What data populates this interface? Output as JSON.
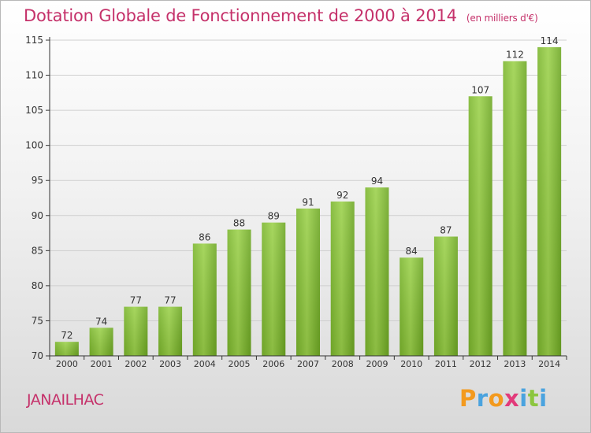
{
  "chart_data": {
    "type": "bar",
    "title": "Dotation Globale de Fonctionnement de 2000 à 2014",
    "subtitle": "(en milliers d'€)",
    "categories": [
      "2000",
      "2001",
      "2002",
      "2003",
      "2004",
      "2005",
      "2006",
      "2007",
      "2008",
      "2009",
      "2010",
      "2011",
      "2012",
      "2013",
      "2014"
    ],
    "values": [
      72,
      74,
      77,
      77,
      86,
      88,
      89,
      91,
      92,
      94,
      84,
      87,
      107,
      112,
      114
    ],
    "ylim": [
      70,
      115
    ],
    "yticks": [
      70,
      75,
      80,
      85,
      90,
      95,
      100,
      105,
      110,
      115
    ],
    "grid": true,
    "bar_color": "#8cc63f",
    "bar_color_dark": "#6aa61f"
  },
  "commune": "JANAILHAC",
  "logo": {
    "text": "Proxiti",
    "letters": [
      "P",
      "r",
      "o",
      "x",
      "i",
      "t",
      "i"
    ],
    "colors": [
      "#f39a1e",
      "#4aa3df",
      "#f39a1e",
      "#e23a7a",
      "#4aa3df",
      "#8cc63f",
      "#4aa3df"
    ]
  },
  "colors": {
    "title": "#c5316a",
    "axis": "#333333",
    "grid": "#cfcfcf"
  }
}
